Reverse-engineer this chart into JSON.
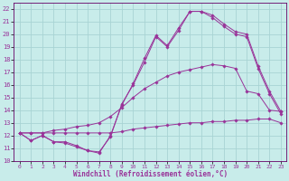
{
  "xlabel": "Windchill (Refroidissement éolien,°C)",
  "background_color": "#c8ecea",
  "grid_color": "#a8d4d4",
  "line_color": "#993399",
  "xlim": [
    -0.5,
    23.5
  ],
  "ylim": [
    10,
    22.5
  ],
  "yticks": [
    10,
    11,
    12,
    13,
    14,
    15,
    16,
    17,
    18,
    19,
    20,
    21,
    22
  ],
  "xticks": [
    0,
    1,
    2,
    3,
    4,
    5,
    6,
    7,
    8,
    9,
    10,
    11,
    12,
    13,
    14,
    15,
    16,
    17,
    18,
    19,
    20,
    21,
    22,
    23
  ],
  "series": [
    {
      "x": [
        0,
        1,
        2,
        3,
        4,
        5,
        6,
        7,
        8,
        9,
        10,
        11,
        12,
        13,
        14,
        15,
        16,
        17,
        18,
        19,
        20,
        21,
        22,
        23
      ],
      "y": [
        12.2,
        11.6,
        12.0,
        11.5,
        11.5,
        11.2,
        10.8,
        10.7,
        11.9,
        14.5,
        16.0,
        17.8,
        19.8,
        19.0,
        20.3,
        21.8,
        21.8,
        21.5,
        20.8,
        20.2,
        20.0,
        17.5,
        15.5,
        13.9
      ]
    },
    {
      "x": [
        0,
        1,
        2,
        3,
        4,
        5,
        6,
        7,
        8,
        9,
        10,
        11,
        12,
        13,
        14,
        15,
        16,
        17,
        18,
        19,
        20,
        21,
        22,
        23
      ],
      "y": [
        12.2,
        11.6,
        12.0,
        11.5,
        11.4,
        11.1,
        10.8,
        10.6,
        12.0,
        14.4,
        16.1,
        18.1,
        19.9,
        19.1,
        20.5,
        21.8,
        21.8,
        21.3,
        20.6,
        20.0,
        19.8,
        17.3,
        15.3,
        13.7
      ]
    },
    {
      "x": [
        0,
        1,
        2,
        3,
        4,
        5,
        6,
        7,
        8,
        9,
        10,
        11,
        12,
        13,
        14,
        15,
        16,
        17,
        18,
        19,
        20,
        21,
        22,
        23
      ],
      "y": [
        12.2,
        12.2,
        12.2,
        12.4,
        12.5,
        12.7,
        12.8,
        13.0,
        13.5,
        14.2,
        15.0,
        15.7,
        16.2,
        16.7,
        17.0,
        17.2,
        17.4,
        17.6,
        17.5,
        17.3,
        15.5,
        15.3,
        14.0,
        13.9
      ]
    },
    {
      "x": [
        0,
        1,
        2,
        3,
        4,
        5,
        6,
        7,
        8,
        9,
        10,
        11,
        12,
        13,
        14,
        15,
        16,
        17,
        18,
        19,
        20,
        21,
        22,
        23
      ],
      "y": [
        12.2,
        12.2,
        12.2,
        12.2,
        12.2,
        12.2,
        12.2,
        12.2,
        12.2,
        12.3,
        12.5,
        12.6,
        12.7,
        12.8,
        12.9,
        13.0,
        13.0,
        13.1,
        13.1,
        13.2,
        13.2,
        13.3,
        13.3,
        13.0
      ]
    }
  ]
}
